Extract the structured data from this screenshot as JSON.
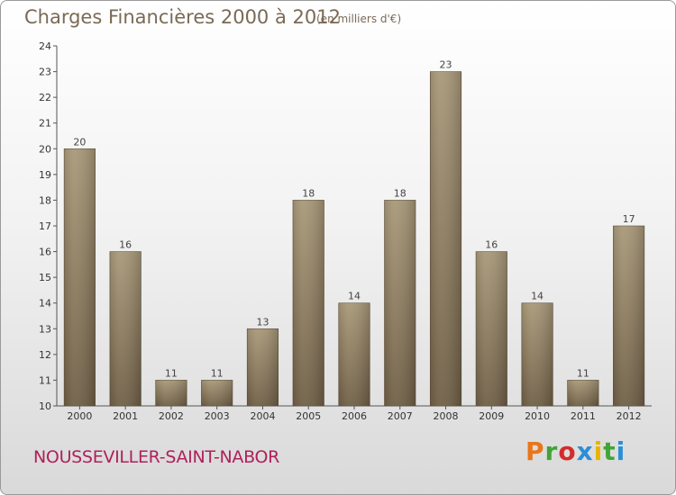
{
  "header": {
    "title": "Charges Financières 2000 à 2012",
    "subtitle": "(en milliers d'€)"
  },
  "footer": {
    "town": "NOUSSEVILLER-SAINT-NABOR",
    "logo_text": "Proxiti",
    "logo_colors": [
      "#e8761b",
      "#3fa535",
      "#d42b2b",
      "#2a8fd6",
      "#e8b400",
      "#3fa535",
      "#2a8fd6"
    ]
  },
  "chart_data": {
    "type": "bar",
    "title": "Charges Financières 2000 à 2012",
    "subtitle": "(en milliers d'€)",
    "categories": [
      "2000",
      "2001",
      "2002",
      "2003",
      "2004",
      "2005",
      "2006",
      "2007",
      "2008",
      "2009",
      "2010",
      "2011",
      "2012"
    ],
    "values": [
      20,
      16,
      11,
      11,
      13,
      18,
      14,
      18,
      23,
      16,
      14,
      11,
      17
    ],
    "ylim": [
      10,
      24
    ],
    "yticks": [
      10,
      11,
      12,
      13,
      14,
      15,
      16,
      17,
      18,
      19,
      20,
      21,
      22,
      23,
      24
    ],
    "xlabel": "",
    "ylabel": "",
    "grid": false,
    "bar_color_light": "#a89878",
    "bar_color_dark": "#6f5e45"
  }
}
